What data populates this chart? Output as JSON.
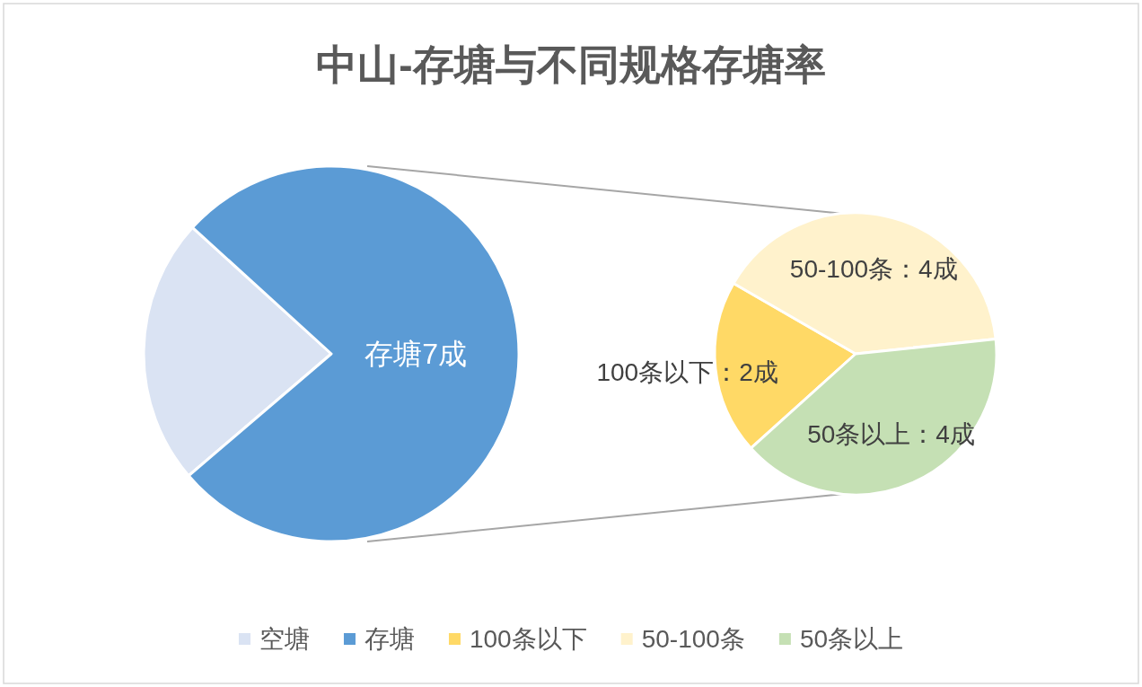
{
  "chart_data": [
    {
      "type": "pie",
      "title": "中山-存塘与不同规格存塘率",
      "categories": [
        "空塘",
        "存塘"
      ],
      "values": [
        23,
        77
      ],
      "colors": [
        "#dae3f3",
        "#5b9bd5"
      ],
      "value_labels": [
        null,
        "存塘7成"
      ],
      "legend": "bottom"
    },
    {
      "type": "pie",
      "categories": [
        "100条以下",
        "50-100条",
        "50条以上"
      ],
      "values": [
        2,
        4,
        4
      ],
      "colors": [
        "#ffd966",
        "#fff2cc",
        "#c5e0b4"
      ],
      "value_labels": [
        "100条以下：2成",
        "50-100条：4成",
        "50条以上：4成"
      ],
      "legend": "bottom"
    }
  ]
}
